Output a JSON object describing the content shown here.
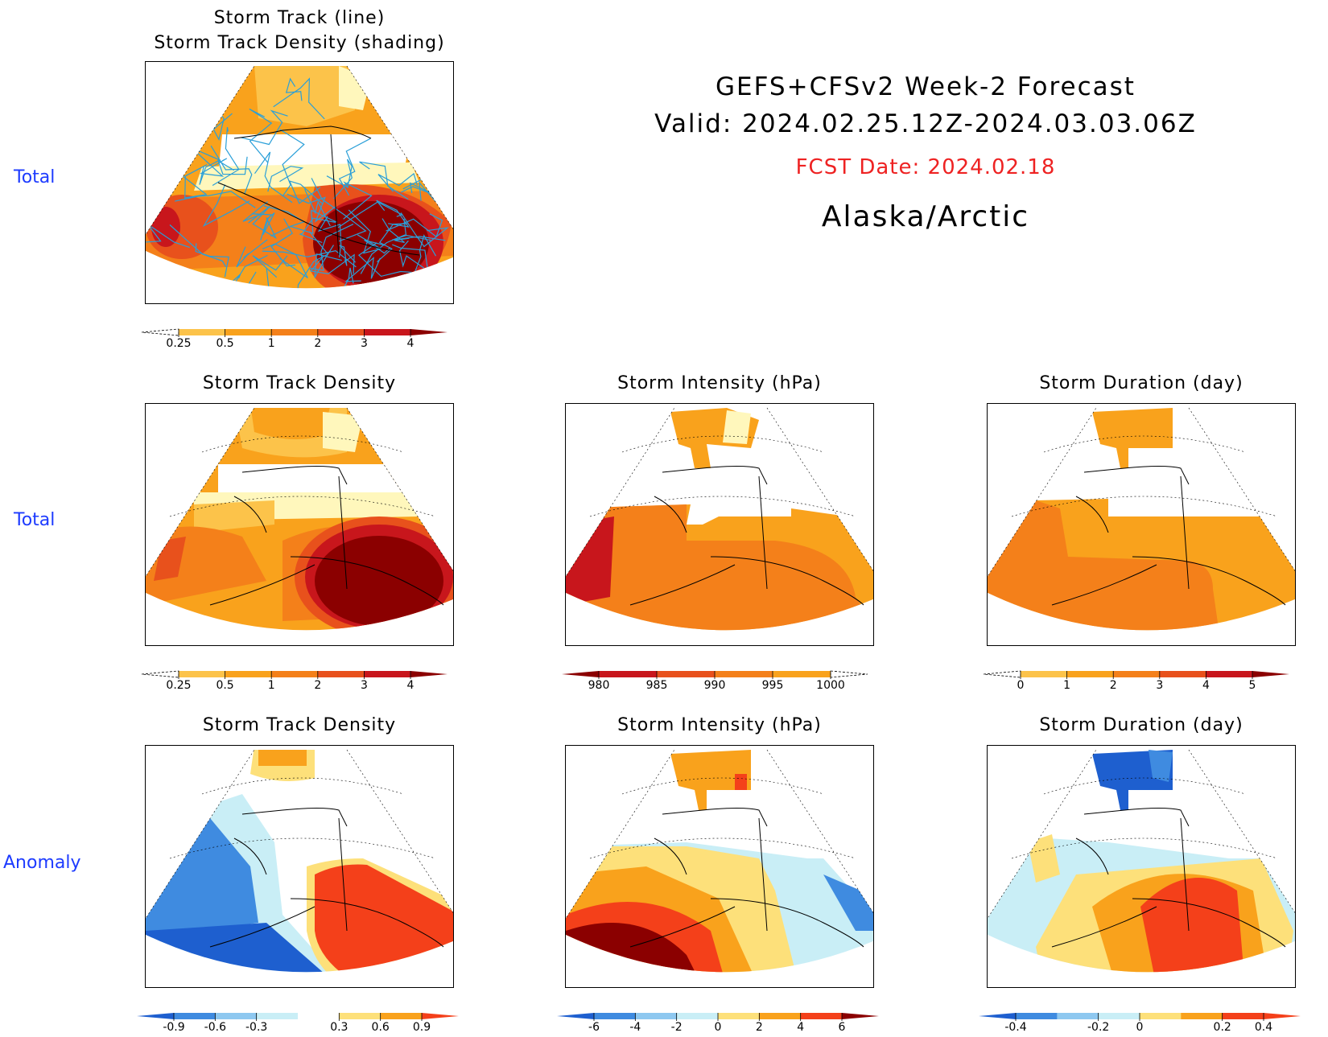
{
  "header": {
    "title": "GEFS+CFSv2 Week-2 Forecast",
    "valid": "Valid: 2024.02.25.12Z-2024.03.03.06Z",
    "fcst_date": "FCST Date: 2024.02.18",
    "region": "Alaska/Arctic",
    "fcst_color": "#ee2222"
  },
  "row_labels": [
    "Total",
    "Total",
    "Anomaly"
  ],
  "panels": {
    "top": {
      "title_line1": "Storm Track (line)",
      "title_line2": "Storm Track Density (shading)"
    },
    "density_total": {
      "title": "Storm Track Density"
    },
    "intensity_total": {
      "title": "Storm Intensity (hPa)"
    },
    "duration_total": {
      "title": "Storm Duration (day)"
    },
    "density_anom": {
      "title": "Storm Track Density"
    },
    "intensity_anom": {
      "title": "Storm Intensity (hPa)"
    },
    "duration_anom": {
      "title": "Storm Duration (day)"
    }
  },
  "colorbars": {
    "density": {
      "labels": [
        "0.25",
        "0.5",
        "1",
        "2",
        "3",
        "4"
      ],
      "colors": [
        "#fff7bc",
        "#fcc34a",
        "#f9a21c",
        "#f4801a",
        "#e8511c",
        "#c8161c",
        "#8b0000"
      ]
    },
    "intensity": {
      "labels": [
        "980",
        "985",
        "990",
        "995",
        "1000"
      ],
      "colors": [
        "#8b0000",
        "#c8161c",
        "#e8511c",
        "#f4801a",
        "#f9a21c",
        "#fff7bc"
      ]
    },
    "duration": {
      "labels": [
        "0",
        "1",
        "2",
        "3",
        "4",
        "5"
      ],
      "colors": [
        "#fff7bc",
        "#fcc34a",
        "#f9a21c",
        "#f4801a",
        "#e8511c",
        "#c8161c",
        "#8b0000"
      ]
    },
    "density_anom": {
      "labels": [
        "-0.9",
        "-0.6",
        "-0.3",
        "0.3",
        "0.6",
        "0.9"
      ],
      "colors": [
        "#1e5fcf",
        "#3f8be0",
        "#8ec8f0",
        "#c9eef6",
        "#ffffff",
        "#fde07a",
        "#f9a21c",
        "#f4401a"
      ]
    },
    "intensity_anom": {
      "labels": [
        "-6",
        "-4",
        "-2",
        "0",
        "2",
        "4",
        "6"
      ],
      "colors": [
        "#1e5fcf",
        "#3f8be0",
        "#8ec8f0",
        "#c9eef6",
        "#fde07a",
        "#f9a21c",
        "#f4401a",
        "#8b0000"
      ]
    },
    "duration_anom": {
      "labels": [
        "-0.4",
        "-0.2",
        "0",
        "0.2",
        "0.4"
      ],
      "colors": [
        "#1e5fcf",
        "#3f8be0",
        "#8ec8f0",
        "#c9eef6",
        "#fde07a",
        "#f9a21c",
        "#f4401a",
        "#f4401a"
      ]
    }
  },
  "palette": {
    "dark_red": "#8b0000",
    "red": "#c8161c",
    "orange_red": "#e8511c",
    "orange": "#f4801a",
    "light_orange": "#f9a21c",
    "yellow": "#fcc34a",
    "pale_yellow": "#fff7bc",
    "track_line": "#2a9fd8",
    "blue_dark": "#1e5fcf",
    "blue": "#3f8be0",
    "blue_light": "#c9eef6",
    "anom_red": "#f4401a"
  }
}
